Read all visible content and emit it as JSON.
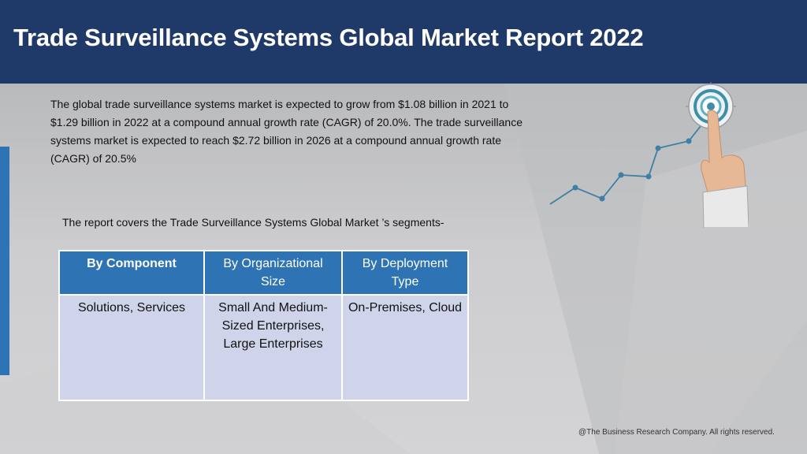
{
  "header": {
    "title": "Trade Surveillance Systems Global Market Report 2022"
  },
  "intro": "The global trade surveillance systems market is expected to grow from $1.08 billion in 2021 to $1.29 billion in 2022 at a compound annual growth rate (CAGR) of 20.0%. The trade surveillance systems market is expected to reach $2.72 billion in 2026 at a compound annual growth rate (CAGR) of 20.5%",
  "segments_note": "The report covers the Trade Surveillance Systems Global Market ’s segments-",
  "table": {
    "headers": [
      "By Component",
      "By Organizational Size",
      "By Deployment Type"
    ],
    "cells": [
      "Solutions, Services",
      "Small And Medium-Sized Enterprises, Large Enterprises",
      "On-Premises, Cloud"
    ]
  },
  "footer": "@The Business Research Company. All rights reserved.",
  "colors": {
    "header_bg": "#1f3a68",
    "accent_blue": "#2e74b5",
    "table_cell_bg": "#d0d4eb",
    "graph_line": "#3d7fa6"
  },
  "icons": [
    "target-icon",
    "pointing-hand-icon",
    "growth-line-icon"
  ]
}
